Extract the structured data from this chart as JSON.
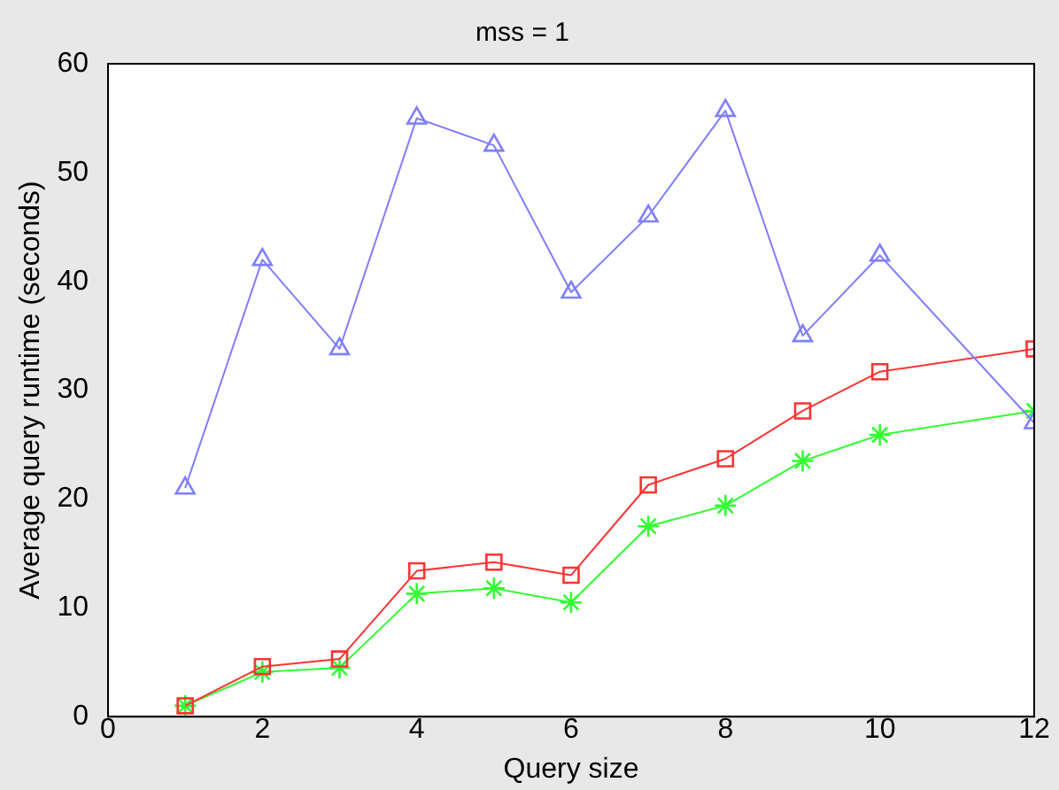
{
  "chart_data": {
    "type": "line",
    "title": "mss = 1",
    "xlabel": "Query size",
    "ylabel": "Average query runtime (seconds)",
    "x": [
      1,
      2,
      3,
      4,
      5,
      6,
      7,
      8,
      9,
      10,
      12
    ],
    "series": [
      {
        "color": "#7f7fff",
        "marker": "triangle",
        "values": [
          21,
          42,
          33.8,
          55,
          52.5,
          39,
          46,
          55.7,
          35,
          42.4,
          27
        ]
      },
      {
        "color": "#ff3333",
        "marker": "square",
        "values": [
          1,
          4.6,
          5.3,
          13.4,
          14.2,
          13,
          21.3,
          23.7,
          28.1,
          31.7,
          33.8
        ]
      },
      {
        "color": "#33ff33",
        "marker": "cross",
        "values": [
          1,
          4.1,
          4.5,
          11.3,
          11.8,
          10.5,
          17.5,
          19.4,
          23.5,
          25.9,
          28.1
        ]
      }
    ],
    "xlim": [
      0,
      12
    ],
    "xticks": [
      0,
      2,
      4,
      6,
      8,
      10,
      12
    ],
    "ylim": [
      0,
      60
    ],
    "yticks": [
      0,
      10,
      20,
      30,
      40,
      50,
      60
    ],
    "grid": false,
    "legend": false,
    "line_style": "solid"
  }
}
